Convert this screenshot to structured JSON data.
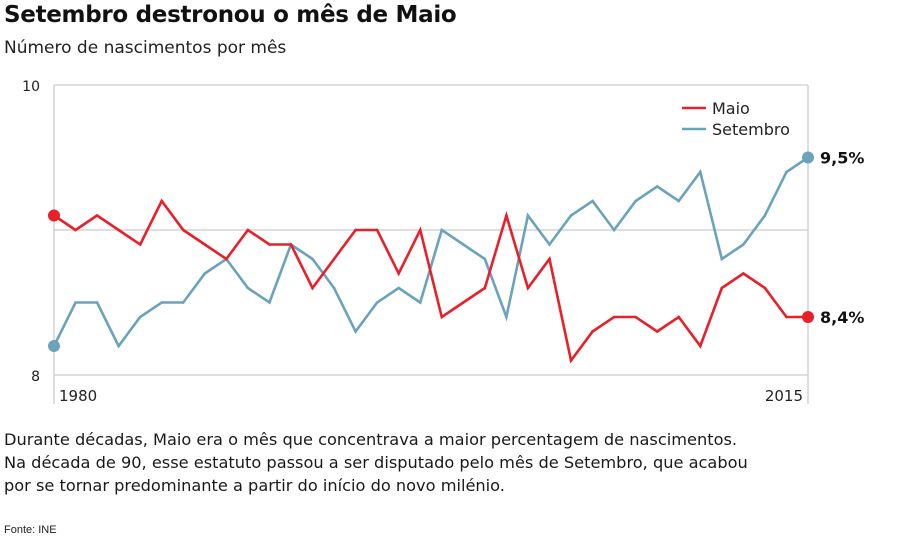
{
  "header": {
    "title": "Setembro destronou o mês de Maio",
    "subtitle": "Número de nascimentos por mês"
  },
  "description": [
    "Durante décadas, Maio era o mês que concentrava a maior percentagem de nascimentos.",
    "Na década de 90, esse estatuto passou a ser disputado pelo mês de Setembro, que acabou",
    "por se tornar predominante a partir do início do novo milénio."
  ],
  "source": "Fonte: INE",
  "chart_data": {
    "type": "line",
    "title": "Setembro destronou o mês de Maio",
    "subtitle": "Número de nascimentos por mês",
    "xlabel": "",
    "ylabel": "",
    "ylim": [
      8,
      10
    ],
    "yticks": [
      8,
      9,
      10
    ],
    "ytick_labels": [
      "8",
      "",
      "10"
    ],
    "xlim": [
      1980,
      2015
    ],
    "xtick_labels": [
      "1980",
      "2015"
    ],
    "grid": true,
    "legend": {
      "placement": "top-right",
      "entries": [
        "Maio",
        "Setembro"
      ]
    },
    "x": [
      1980,
      1981,
      1982,
      1983,
      1984,
      1985,
      1986,
      1987,
      1988,
      1989,
      1990,
      1991,
      1992,
      1993,
      1994,
      1995,
      1996,
      1997,
      1998,
      1999,
      2000,
      2001,
      2002,
      2003,
      2004,
      2005,
      2006,
      2007,
      2008,
      2009,
      2010,
      2011,
      2012,
      2013,
      2014,
      2015
    ],
    "series": [
      {
        "name": "Maio",
        "color": "#e8202a",
        "values": [
          9.1,
          9.0,
          9.1,
          9.0,
          8.9,
          9.2,
          9.0,
          8.9,
          8.8,
          9.0,
          8.9,
          8.9,
          8.6,
          8.8,
          9.0,
          9.0,
          8.7,
          9.0,
          8.4,
          8.5,
          8.6,
          9.1,
          8.6,
          8.8,
          8.1,
          8.3,
          8.4,
          8.4,
          8.3,
          8.4,
          8.2,
          8.6,
          8.7,
          8.6,
          8.4,
          8.4
        ],
        "end_label": "8,4%"
      },
      {
        "name": "Setembro",
        "color": "#6ba3bd",
        "values": [
          8.2,
          8.5,
          8.5,
          8.2,
          8.4,
          8.5,
          8.5,
          8.7,
          8.8,
          8.6,
          8.5,
          8.9,
          8.8,
          8.6,
          8.3,
          8.5,
          8.6,
          8.5,
          9.0,
          8.9,
          8.8,
          8.4,
          9.1,
          8.9,
          9.1,
          9.2,
          9.0,
          9.2,
          9.3,
          9.2,
          9.4,
          8.8,
          8.9,
          9.1,
          9.4,
          9.5
        ],
        "end_label": "9,5%"
      }
    ]
  }
}
